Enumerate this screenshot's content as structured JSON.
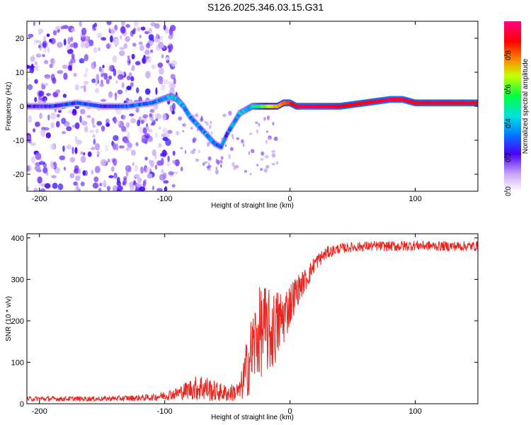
{
  "title": "S126.2025.346.03.15.G31",
  "colors": {
    "snr_line": "#e8251f",
    "axis": "#000000"
  },
  "chart_data": [
    {
      "type": "heatmap",
      "name": "spectrogram",
      "xlabel": "Height of straight line (km)",
      "ylabel": "Frequency (Hz)",
      "xlim": [
        -210,
        150
      ],
      "ylim": [
        -25,
        25
      ],
      "xticks": [
        -200,
        -100,
        0,
        100
      ],
      "yticks": [
        -20,
        -10,
        0,
        10,
        20
      ],
      "colorbar": {
        "label": "Normalized spectral amplitude",
        "range": [
          0,
          1
        ],
        "ticks": [
          0.0,
          0.2,
          0.4,
          0.6,
          0.8
        ],
        "tick_labels": [
          "0.0",
          "0.2",
          "0.4",
          "0.6",
          "0.8"
        ]
      },
      "ridge": {
        "x": [
          -210,
          -190,
          -170,
          -150,
          -130,
          -110,
          -95,
          -90,
          -85,
          -80,
          -75,
          -70,
          -65,
          -60,
          -55,
          -50,
          -45,
          -40,
          -35,
          -30,
          -25,
          -20,
          -15,
          -10,
          -5,
          0,
          5,
          10,
          20,
          40,
          60,
          80,
          90,
          100,
          110,
          130,
          150
        ],
        "freq": [
          0,
          0,
          1,
          0,
          0,
          1,
          3,
          2,
          0,
          -3,
          -5,
          -7,
          -9,
          -11,
          -12,
          -8,
          -5,
          -2,
          -1,
          0,
          0,
          0,
          0,
          0,
          1,
          1,
          0,
          0,
          0,
          0,
          1,
          2,
          2,
          1,
          1,
          1,
          1
        ],
        "amp": [
          0.2,
          0.25,
          0.3,
          0.25,
          0.3,
          0.3,
          0.4,
          0.45,
          0.4,
          0.35,
          0.35,
          0.35,
          0.35,
          0.35,
          0.3,
          0.3,
          0.35,
          0.4,
          0.4,
          0.45,
          0.55,
          0.6,
          0.7,
          0.75,
          0.8,
          0.85,
          0.9,
          0.95,
          0.95,
          0.9,
          0.9,
          0.95,
          0.95,
          0.9,
          0.9,
          0.9,
          0.9
        ]
      },
      "noise": {
        "x_range": [
          -210,
          -90
        ],
        "freq_range": [
          -25,
          25
        ],
        "level": 0.15
      }
    },
    {
      "type": "line",
      "name": "snr",
      "xlabel": "Height of straight line (km)",
      "ylabel": "SNR (10 * v/v)",
      "xlim": [
        -210,
        150
      ],
      "ylim": [
        0,
        410
      ],
      "xticks": [
        -200,
        -100,
        0,
        100
      ],
      "yticks": [
        0,
        100,
        200,
        300,
        400
      ],
      "envelope": {
        "x": [
          -210,
          -150,
          -110,
          -90,
          -80,
          -70,
          -60,
          -50,
          -40,
          -35,
          -30,
          -25,
          -20,
          -15,
          -10,
          -5,
          0,
          5,
          10,
          15,
          20,
          30,
          40,
          60,
          80,
          90,
          100,
          120,
          150
        ],
        "center": [
          12,
          12,
          15,
          25,
          35,
          40,
          30,
          25,
          30,
          80,
          130,
          170,
          180,
          170,
          190,
          210,
          240,
          270,
          290,
          310,
          340,
          365,
          375,
          380,
          380,
          380,
          382,
          380,
          380
        ],
        "spread": [
          6,
          6,
          8,
          15,
          25,
          35,
          25,
          20,
          25,
          70,
          100,
          110,
          110,
          100,
          90,
          70,
          55,
          40,
          30,
          25,
          20,
          15,
          12,
          12,
          12,
          14,
          12,
          12,
          12
        ]
      }
    }
  ]
}
